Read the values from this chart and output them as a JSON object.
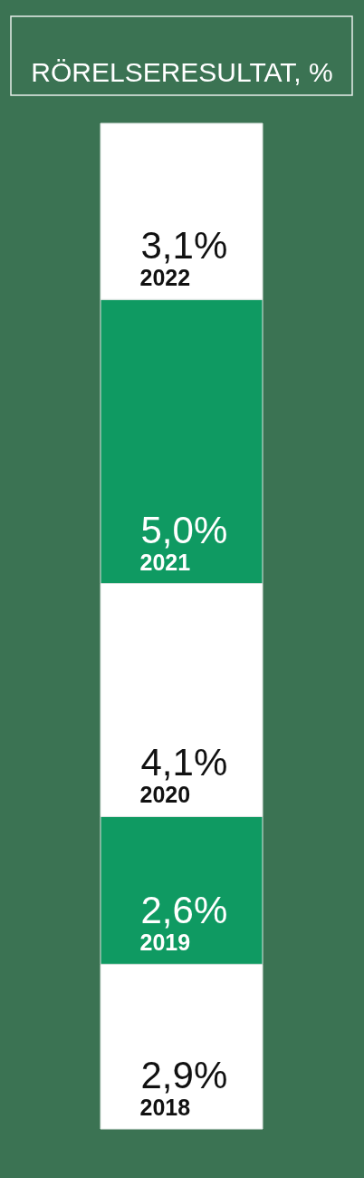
{
  "chart_data": {
    "type": "bar",
    "title": "RÖRELSERESULTAT, %",
    "categories": [
      null
    ],
    "stacked": true,
    "tick_labels": false,
    "series": [
      {
        "name": "2018",
        "color": "#ffffff",
        "values": [
          2.9
        ],
        "value_labels": [
          "2,9%"
        ]
      },
      {
        "name": "2019",
        "color": "#0f9a62",
        "values": [
          2.6
        ],
        "value_labels": [
          "2,6%"
        ]
      },
      {
        "name": "2020",
        "color": "#ffffff",
        "values": [
          4.1
        ],
        "value_labels": [
          "4,1%"
        ]
      },
      {
        "name": "2021",
        "color": "#0f9a62",
        "values": [
          5.0
        ],
        "value_labels": [
          "5,0%"
        ]
      },
      {
        "name": "2022",
        "color": "#ffffff",
        "values": [
          3.1
        ],
        "value_labels": [
          "3,1%"
        ]
      }
    ]
  }
}
